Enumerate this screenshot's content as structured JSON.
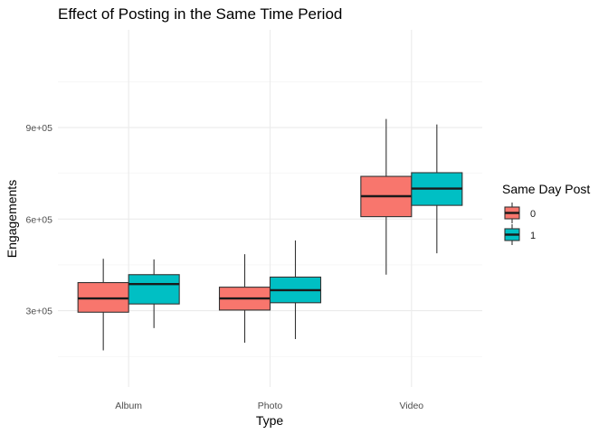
{
  "chart_data": {
    "type": "boxplot",
    "title": "Effect of Posting in the Same Time Period",
    "xlabel": "Type",
    "ylabel": "Engagements",
    "categories": [
      "Album",
      "Photo",
      "Video"
    ],
    "ylim": [
      50000,
      1220000
    ],
    "yticks": [
      300000,
      600000,
      900000
    ],
    "ytick_labels": [
      "3e+05",
      "6e+05",
      "9e+05"
    ],
    "grid": true,
    "legend": {
      "title": "Same Day Post",
      "position": "right"
    },
    "series": [
      {
        "name": "0",
        "color": "#F8766D",
        "boxes": [
          {
            "min": 170000,
            "q1": 295000,
            "median": 340000,
            "q3": 392000,
            "max": 470000
          },
          {
            "min": 195000,
            "q1": 302000,
            "median": 340000,
            "q3": 377000,
            "max": 485000
          },
          {
            "min": 418000,
            "q1": 608000,
            "median": 675000,
            "q3": 740000,
            "max": 928000
          }
        ]
      },
      {
        "name": "1",
        "color": "#00BFC4",
        "boxes": [
          {
            "min": 243000,
            "q1": 322000,
            "median": 387000,
            "q3": 418000,
            "max": 468000
          },
          {
            "min": 207000,
            "q1": 326000,
            "median": 367000,
            "q3": 410000,
            "max": 530000
          },
          {
            "min": 488000,
            "q1": 645000,
            "median": 700000,
            "q3": 752000,
            "max": 910000
          }
        ]
      }
    ]
  }
}
